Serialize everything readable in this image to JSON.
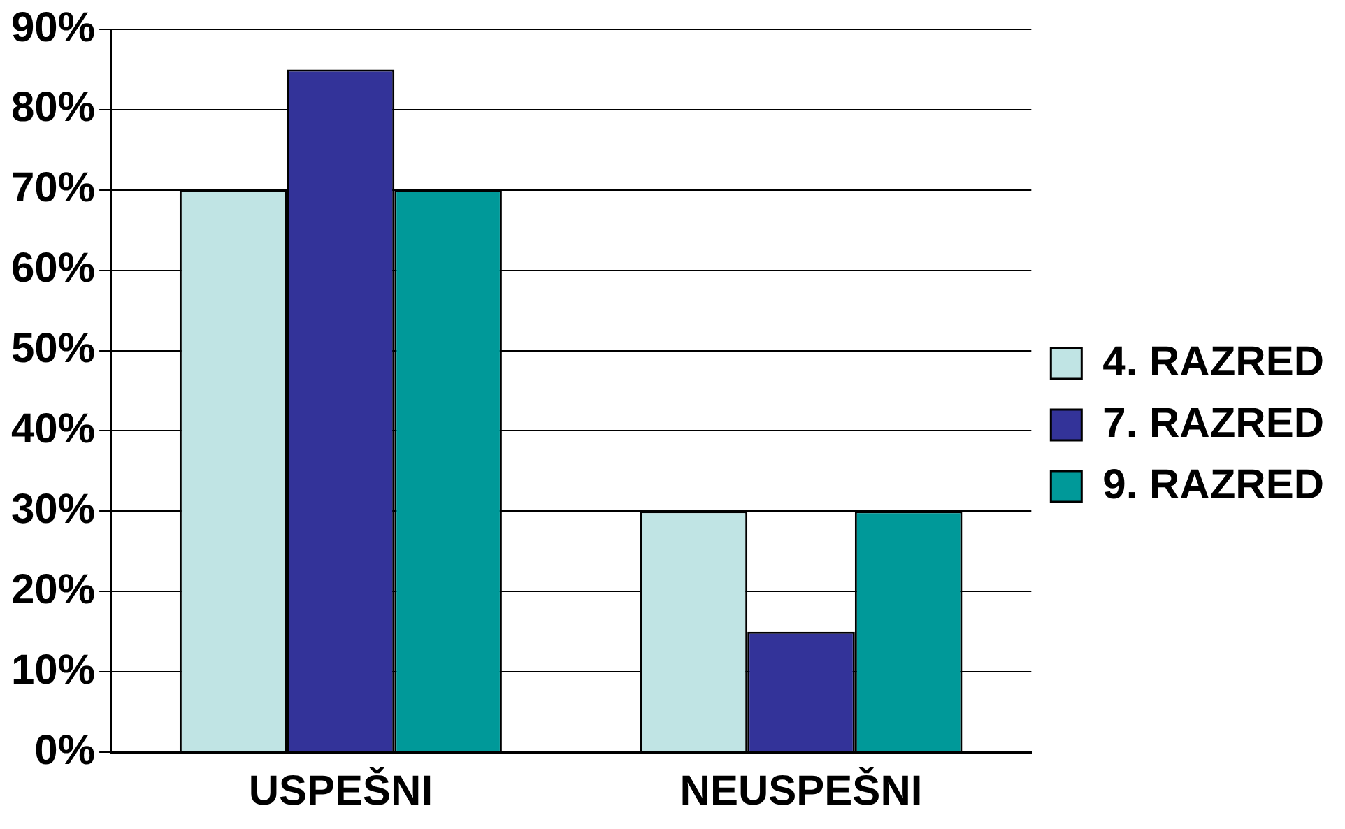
{
  "chart_data": {
    "type": "bar",
    "categories": [
      "USPEŠNI",
      "NEUSPEŠNI"
    ],
    "series": [
      {
        "name": "4. RAZRED",
        "color": "#c0e4e4",
        "values": [
          70,
          30
        ]
      },
      {
        "name": "7. RAZRED",
        "color": "#333399",
        "values": [
          85,
          15
        ]
      },
      {
        "name": "9. RAZRED",
        "color": "#009999",
        "values": [
          70,
          30
        ]
      }
    ],
    "ylim": [
      0,
      90
    ],
    "yticks": [
      {
        "value": 0,
        "label": "0%"
      },
      {
        "value": 10,
        "label": "10%"
      },
      {
        "value": 20,
        "label": "20%"
      },
      {
        "value": 30,
        "label": "30%"
      },
      {
        "value": 40,
        "label": "40%"
      },
      {
        "value": 50,
        "label": "50%"
      },
      {
        "value": 60,
        "label": "60%"
      },
      {
        "value": 70,
        "label": "70%"
      },
      {
        "value": 80,
        "label": "80%"
      },
      {
        "value": 90,
        "label": "90%"
      }
    ],
    "grid": "y",
    "legend": "right"
  }
}
